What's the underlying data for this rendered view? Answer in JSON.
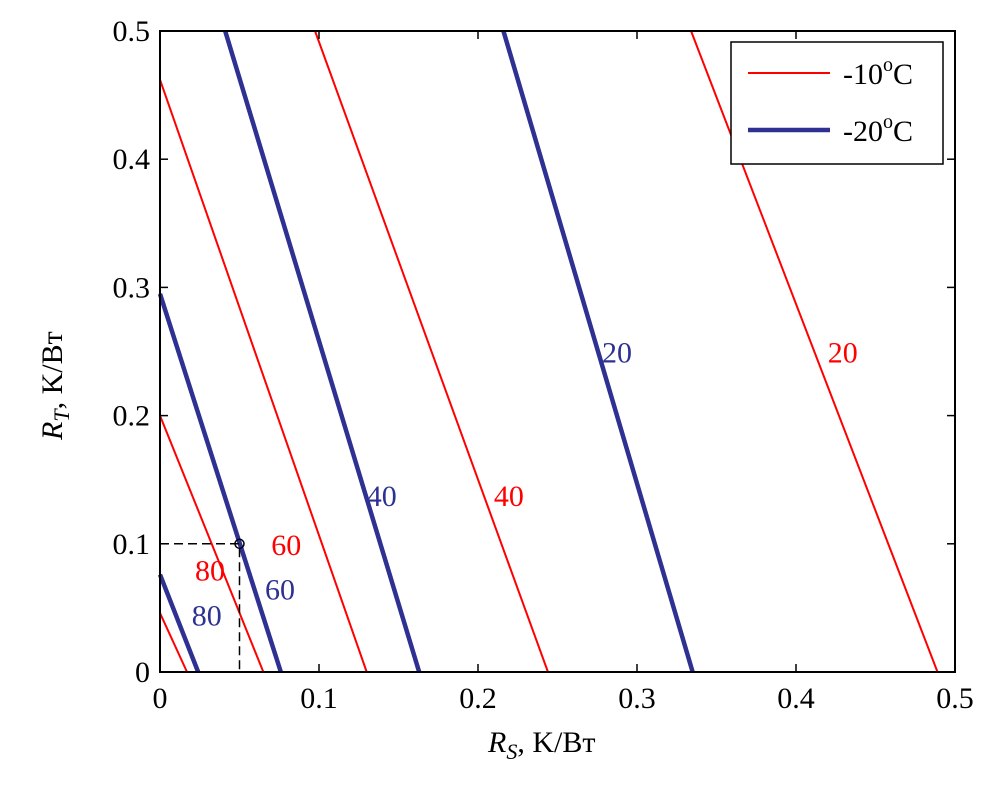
{
  "chart_data": {
    "type": "line",
    "title": "",
    "xlabel": {
      "var": "R",
      "sub": "S",
      "unit": ", K/Вт"
    },
    "ylabel": {
      "var": "R",
      "sub": "T",
      "unit": ", K/Вт"
    },
    "xlim": [
      0,
      0.5
    ],
    "ylim": [
      0,
      0.5
    ],
    "xticks": [
      "0",
      "0.1",
      "0.2",
      "0.3",
      "0.4",
      "0.5"
    ],
    "yticks": [
      "0",
      "0.1",
      "0.2",
      "0.3",
      "0.4",
      "0.5"
    ],
    "legend": {
      "placement": "top-right",
      "entries": [
        {
          "label": "-10",
          "sup": "o",
          "unit": "C",
          "color": "#ff0000"
        },
        {
          "label": "-20",
          "sup": "o",
          "unit": "C",
          "color": "#2e3192"
        }
      ]
    },
    "series": [
      {
        "name": "-10°C",
        "color": "#ff0000",
        "lines": [
          {
            "label": "",
            "points": [
              [
                0,
                0.046
              ],
              [
                0.017,
                0
              ]
            ]
          },
          {
            "label": "80",
            "points": [
              [
                0,
                0.2
              ],
              [
                0.065,
                0
              ]
            ],
            "label_pos": [
              0.022,
              0.08
            ]
          },
          {
            "label": "60",
            "points": [
              [
                0,
                0.462
              ],
              [
                0.13,
                0
              ]
            ],
            "label_pos": [
              0.07,
              0.1
            ]
          },
          {
            "label": "40",
            "points": [
              [
                0.0975,
                0.5
              ],
              [
                0.244,
                0
              ]
            ],
            "label_pos": [
              0.21,
              0.138
            ]
          },
          {
            "label": "20",
            "points": [
              [
                0.334,
                0.5
              ],
              [
                0.489,
                0
              ]
            ],
            "label_pos": [
              0.42,
              0.25
            ]
          }
        ]
      },
      {
        "name": "-20°C",
        "color": "#2e3192",
        "lines": [
          {
            "label": "80",
            "points": [
              [
                0,
                0.076
              ],
              [
                0.024,
                0
              ]
            ],
            "label_pos": [
              0.02,
              0.045
            ]
          },
          {
            "label": "60",
            "points": [
              [
                0,
                0.295
              ],
              [
                0.076,
                0
              ]
            ],
            "label_pos": [
              0.066,
              0.065
            ]
          },
          {
            "label": "40",
            "points": [
              [
                0.041,
                0.5
              ],
              [
                0.163,
                0
              ]
            ],
            "label_pos": [
              0.13,
              0.138
            ]
          },
          {
            "label": "20",
            "points": [
              [
                0.216,
                0.5
              ],
              [
                0.335,
                0
              ]
            ],
            "label_pos": [
              0.278,
              0.25
            ]
          }
        ]
      }
    ],
    "marker": {
      "point": [
        0.05,
        0.1
      ],
      "dashed_guides": true
    }
  }
}
